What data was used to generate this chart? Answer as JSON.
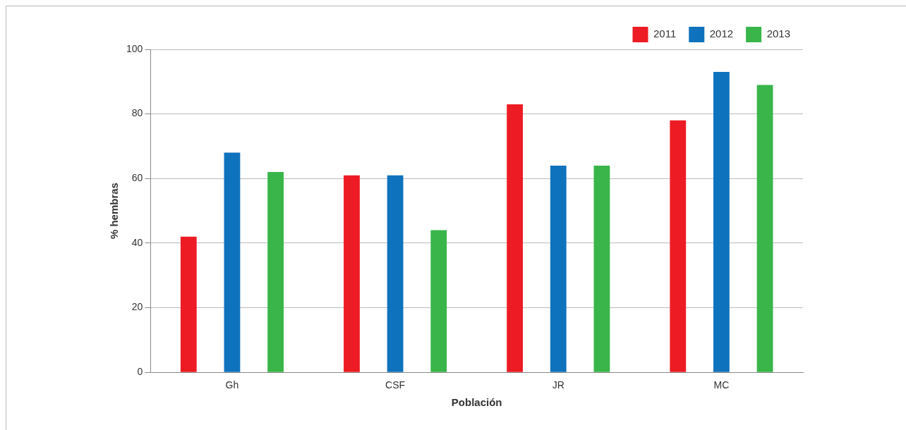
{
  "chart_data": {
    "type": "bar",
    "xlabel": "Población",
    "ylabel": "% hembras",
    "categories": [
      "Gh",
      "CSF",
      "JR",
      "MC"
    ],
    "series": [
      {
        "name": "2011",
        "color": "#ed1c24",
        "values": [
          42,
          61,
          83,
          78
        ]
      },
      {
        "name": "2012",
        "color": "#0f72bd",
        "values": [
          68,
          61,
          64,
          93
        ]
      },
      {
        "name": "2013",
        "color": "#39b54a",
        "values": [
          62,
          44,
          64,
          89
        ]
      }
    ],
    "ylim": [
      0,
      100
    ],
    "yticks": [
      0,
      20,
      40,
      60,
      80,
      100
    ],
    "grid": "y",
    "legend": "top right"
  }
}
